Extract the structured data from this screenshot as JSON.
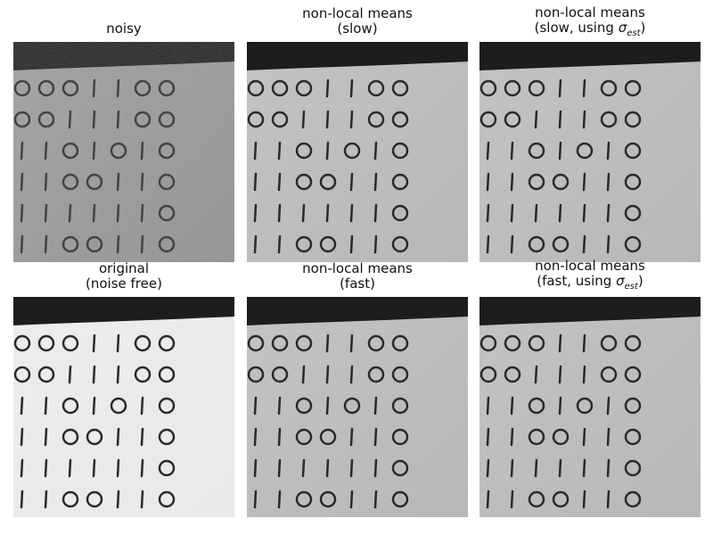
{
  "panels": [
    {
      "id": "noisy",
      "title": [
        "noisy"
      ],
      "tone": "noisy"
    },
    {
      "id": "nlm-slow",
      "title": [
        "non-local means",
        "(slow)"
      ],
      "tone": "soft"
    },
    {
      "id": "nlm-slow-sigma",
      "title": [
        "non-local means",
        "(slow, using σ_est)"
      ],
      "tone": "soft"
    },
    {
      "id": "original",
      "title": [
        "original",
        "(noise free)"
      ],
      "tone": "clean"
    },
    {
      "id": "nlm-fast",
      "title": [
        "non-local means",
        "(fast)"
      ],
      "tone": "soft"
    },
    {
      "id": "nlm-fast-sigma",
      "title": [
        "non-local means",
        "(fast, using σ_est)"
      ],
      "tone": "soft"
    }
  ],
  "digit_rows": [
    "0001100",
    "0011100",
    "1101010",
    "1100110",
    "1111110",
    "1100110"
  ],
  "colors": {
    "paper_clean": "#e9e9e9",
    "paper_soft": "#b8b8b8",
    "paper_noisy": "#8f8f8f",
    "dark_band": "#1d1d1d",
    "ink": "#2a2a2a"
  }
}
